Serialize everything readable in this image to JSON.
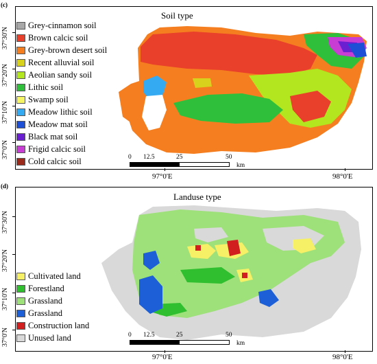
{
  "panel_c": {
    "tag": "(c)",
    "title": "Soil type",
    "legend": [
      {
        "label": "Grey-cinnamon soil",
        "color": "#a8a8a8"
      },
      {
        "label": "Brown calcic soil",
        "color": "#e8402a"
      },
      {
        "label": "Grey-brown desert soil",
        "color": "#f57f20"
      },
      {
        "label": "Recent alluvial soil",
        "color": "#d8d21c"
      },
      {
        "label": "Aeolian sandy soil",
        "color": "#b3e61e"
      },
      {
        "label": "Lithic soil",
        "color": "#2fbf3a"
      },
      {
        "label": "Swamp soil",
        "color": "#f5f566"
      },
      {
        "label": "Meadow lithic soil",
        "color": "#33aaf2"
      },
      {
        "label": "Meadow mat soil",
        "color": "#1c4fd6"
      },
      {
        "label": "Black mat soil",
        "color": "#6a1fd1"
      },
      {
        "label": "Frigid calcic soil",
        "color": "#c83dd4"
      },
      {
        "label": "Cold calcic soil",
        "color": "#9c2a1a"
      }
    ],
    "lat_labels": [
      "37°30'N",
      "37°20'N",
      "37°10'N",
      "37°0'N"
    ],
    "lon_labels": [
      "97°0'E",
      "98°0'E"
    ],
    "scale": {
      "ticks": [
        "0",
        "12.5",
        "25",
        "50"
      ],
      "unit": "km"
    }
  },
  "panel_d": {
    "tag": "(d)",
    "title": "Landuse type",
    "legend": [
      {
        "label": "Cultivated land",
        "color": "#f5f066"
      },
      {
        "label": "Forestland",
        "color": "#2fbf2f"
      },
      {
        "label": "Grassland",
        "color": "#9ee07a"
      },
      {
        "label": "Grassland",
        "color": "#1c5fd6"
      },
      {
        "label": "Construction land",
        "color": "#d11f1f"
      },
      {
        "label": "Unused land",
        "color": "#d9d9d9"
      }
    ],
    "lat_labels": [
      "37°30'N",
      "37°20'N",
      "37°10'N",
      "37°0'N"
    ],
    "lon_labels": [
      "97°0'E",
      "98°0'E"
    ],
    "scale": {
      "ticks": [
        "0",
        "12.5",
        "25",
        "50"
      ],
      "unit": "km"
    }
  }
}
